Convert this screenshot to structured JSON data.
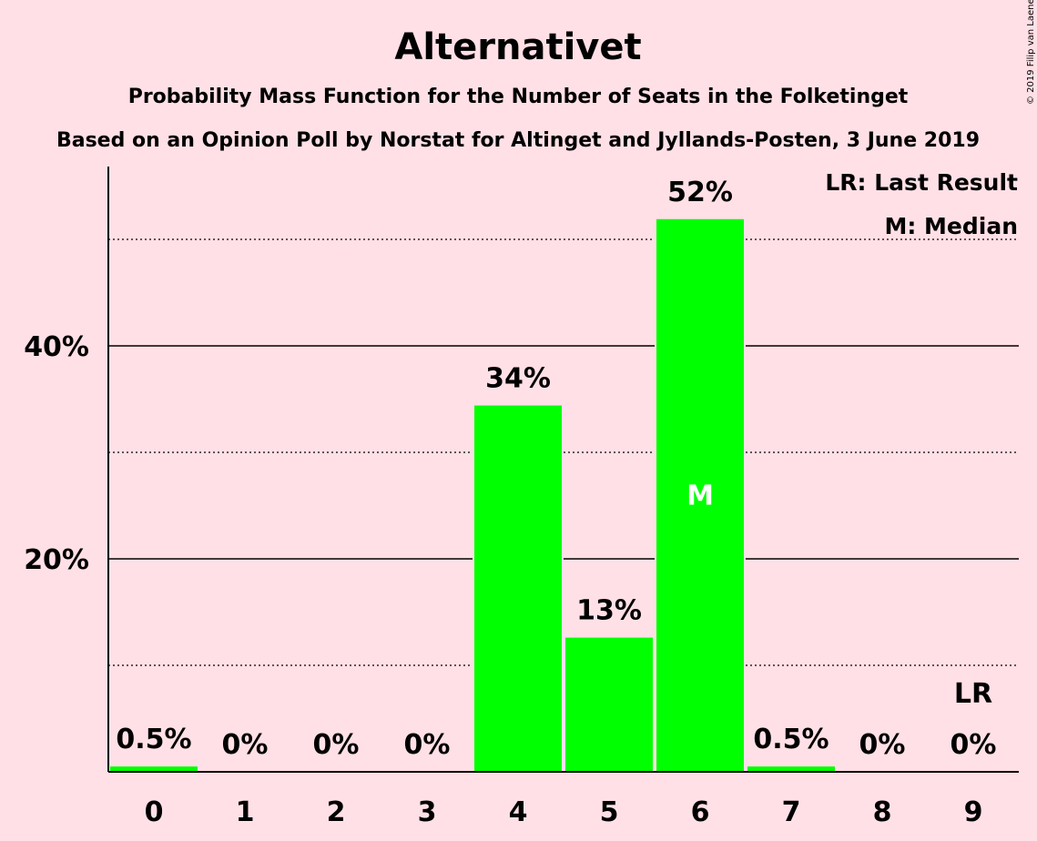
{
  "chart_data": {
    "type": "bar",
    "title": "Alternativet",
    "subtitle": "Probability Mass Function for the Number of Seats in the Folketinget",
    "subtitle2": "Based on an Opinion Poll by Norstat for Altinget and Jyllands-Posten, 3 June 2019",
    "copyright": "© 2019 Filip van Laenen",
    "categories": [
      "0",
      "1",
      "2",
      "3",
      "4",
      "5",
      "6",
      "7",
      "8",
      "9"
    ],
    "values": [
      0.5,
      0,
      0,
      0,
      34.4,
      12.6,
      51.9,
      0.5,
      0,
      0
    ],
    "value_labels": [
      "0.5%",
      "0%",
      "0%",
      "0%",
      "34%",
      "13%",
      "52%",
      "0.5%",
      "0%",
      "0%"
    ],
    "ylim": [
      0,
      56
    ],
    "y_ticks_major": [
      20,
      40
    ],
    "y_tick_labels": [
      "20%",
      "40%"
    ],
    "y_ticks_minor": [
      10,
      30,
      50
    ],
    "median_category": "6",
    "median_label": "M",
    "last_result_category": "9",
    "last_result_label": "LR",
    "legend": [
      "LR: Last Result",
      "M: Median"
    ],
    "bar_color": "#00ff00",
    "background_color": "#ffe0e6"
  }
}
